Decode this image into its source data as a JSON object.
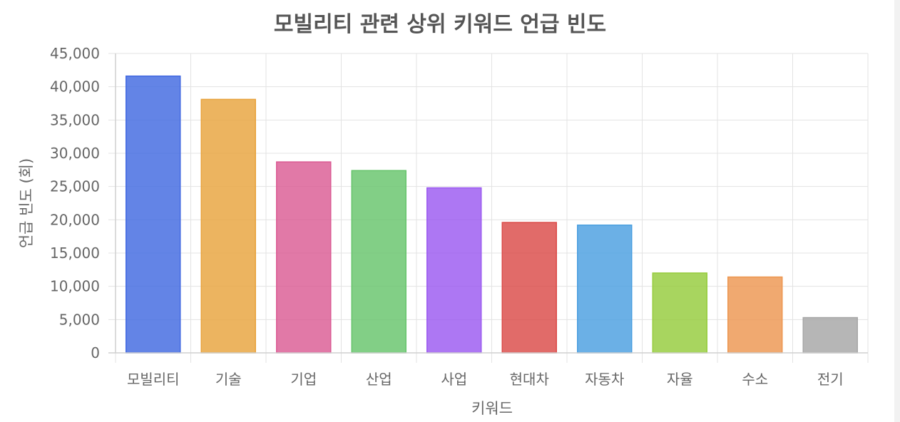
{
  "chart_data": {
    "type": "bar",
    "title": "모빌리티 관련 상위 키워드 언급 빈도",
    "xlabel": "키워드",
    "ylabel": "언급 빈도 (회)",
    "categories": [
      "모빌리티",
      "기술",
      "기업",
      "산업",
      "사업",
      "현대차",
      "자동차",
      "자율",
      "수소",
      "전기"
    ],
    "values": [
      41600,
      38100,
      28700,
      27400,
      24800,
      19600,
      19200,
      12000,
      11400,
      5300
    ],
    "colors": [
      "#4169e1",
      "#e8a33d",
      "#db5b94",
      "#66c46b",
      "#9b59f0",
      "#db4b48",
      "#4a9fe0",
      "#95cc3c",
      "#ed9650",
      "#a6a6a6"
    ],
    "ylim": [
      0,
      45000
    ],
    "yticks": [
      "0",
      "5,000",
      "10,000",
      "15,000",
      "20,000",
      "25,000",
      "30,000",
      "35,000",
      "40,000",
      "45,000"
    ],
    "grid": true,
    "legend": "none"
  }
}
